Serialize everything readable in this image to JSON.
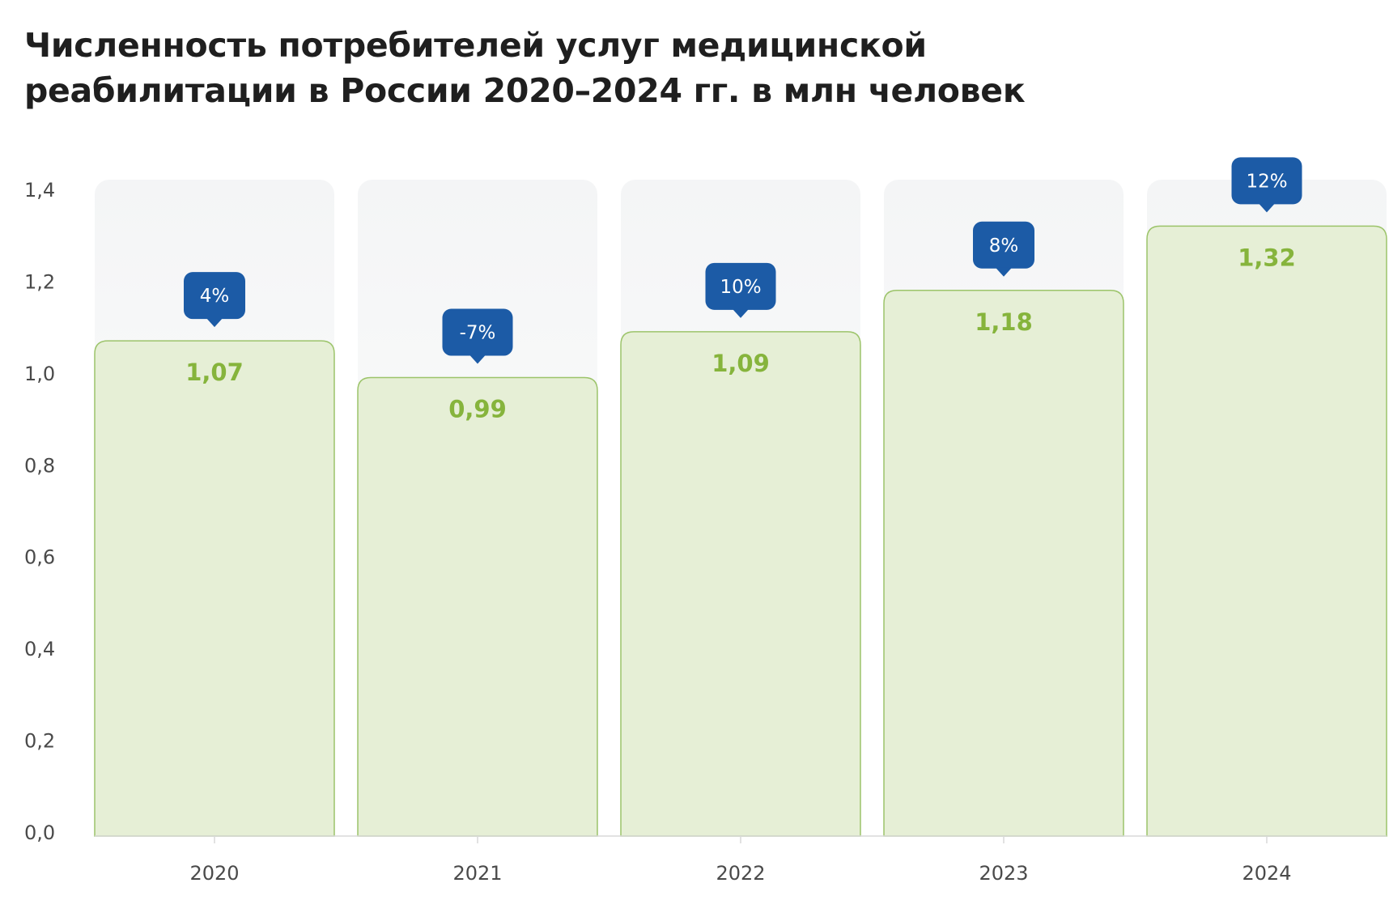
{
  "chart_data": {
    "type": "bar",
    "title_lines": [
      "Численность потребителей услуг медицинской",
      "реабилитации в России 2020–2024 гг. в млн человек"
    ],
    "categories": [
      "2020",
      "2021",
      "2022",
      "2023",
      "2024"
    ],
    "values": [
      1.07,
      0.99,
      1.09,
      1.18,
      1.32
    ],
    "value_labels": [
      "1,07",
      "0,99",
      "1,09",
      "1,18",
      "1,32"
    ],
    "change_labels": [
      "4%",
      "-7%",
      "10%",
      "8%",
      "12%"
    ],
    "y_ticks": [
      "0,0",
      "0,2",
      "0,4",
      "0,6",
      "0,8",
      "1,0",
      "1,2",
      "1,4"
    ],
    "y_tick_values": [
      0,
      0.2,
      0.4,
      0.6,
      0.8,
      1.0,
      1.2,
      1.4
    ],
    "ylim": [
      0,
      1.4
    ],
    "xlabel": "",
    "ylabel": "",
    "grid": false,
    "legend": "none",
    "colors": {
      "bar_fill": "#e6efd6",
      "bar_stroke": "#9cc46a",
      "value_text": "#86b43c",
      "badge": "#1c5ba6",
      "track_top": "#f4f5f6",
      "track_bottom": "#ffffff",
      "axis": "#d9d9d9"
    }
  }
}
